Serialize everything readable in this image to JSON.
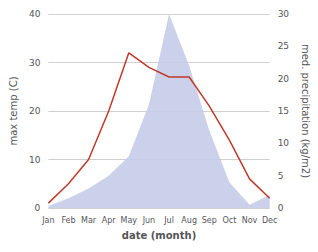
{
  "chart_data": {
    "type": "line",
    "categories": [
      "Jan",
      "Feb",
      "Mar",
      "Apr",
      "May",
      "Jun",
      "Jul",
      "Aug",
      "Sep",
      "Oct",
      "Nov",
      "Dec"
    ],
    "series": [
      {
        "type": "line",
        "color": "#c0392b",
        "values": [
          1,
          5,
          10,
          20,
          32,
          29,
          27,
          27,
          21,
          14,
          6,
          2
        ]
      },
      {
        "type": "area",
        "color": "#c5cce8",
        "axis": "y2",
        "values": [
          0.3,
          1.5,
          3,
          5,
          8,
          16,
          30,
          22,
          12,
          4,
          0.5,
          2
        ]
      }
    ],
    "xlabel": "date (month)",
    "ylabel": "max temp (C)",
    "y2label": "med. precipitation (kg/m2)",
    "ylim": [
      0,
      40
    ],
    "yticks": [
      0,
      10,
      20,
      30,
      40
    ],
    "y2lim": [
      0,
      30
    ],
    "y2ticks": [
      0,
      5,
      10,
      15,
      20,
      25,
      30
    ],
    "grid": true
  }
}
